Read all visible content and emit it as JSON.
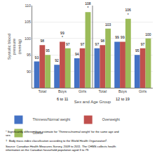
{
  "chart_data": {
    "type": "bar",
    "ylabel": "Systolic blood\npressure\n(mmHg)",
    "xlabel": "Sex and Age Group",
    "categories": [
      "Total",
      "Boys",
      "Girls",
      "Total",
      "Boys",
      "Girls"
    ],
    "annotations": [
      "6 to 11",
      "12 to 19"
    ],
    "series": [
      {
        "name": "Thinness/Normal weight",
        "color": "#4472C4",
        "values": [
          93,
          92,
          94,
          97,
          99,
          95
        ]
      },
      {
        "name": "Overweight",
        "color": "#C0504D",
        "values": [
          98,
          99,
          97,
          98,
          99,
          97
        ],
        "value_labels": [
          "98",
          "99\n*",
          "97",
          "98",
          "99",
          "97"
        ]
      },
      {
        "name": "Obese",
        "color": "#9BBB59",
        "values": [
          95,
          97,
          108,
          103,
          106,
          100
        ],
        "value_labels": [
          "95",
          "97",
          "108\n*",
          "103",
          "106\n*",
          "100"
        ]
      }
    ],
    "ylim": [
      85,
      110
    ],
    "yticks": [
      90,
      95,
      100,
      105,
      110
    ],
    "grid": true,
    "data_labels": true,
    "notes": [
      "* Significantly different from estimate for 'Thinness/normal weight' for the same age and\nsex.",
      "†  Body mass index classification according to the World Health Organization².",
      "Source: Canadian Health Measures Survey, 2009 to 2011. The CHMS collects health\ninformation on the Canadian household population aged 3 to 79."
    ]
  }
}
